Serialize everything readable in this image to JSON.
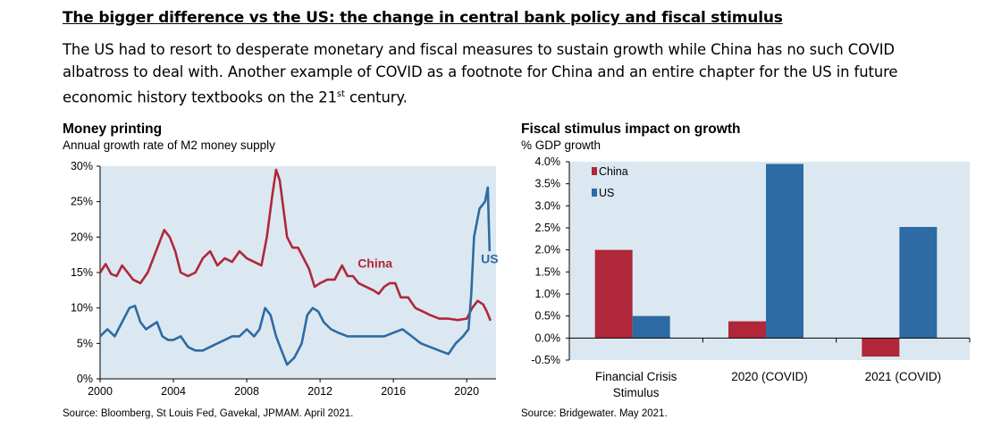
{
  "header": {
    "heading": "The bigger difference vs the US: the change in central bank policy and fiscal stimulus",
    "body_before_sup": "The US had to resort to desperate monetary and fiscal measures to sustain growth while China has no such COVID albatross to deal with.   Another example of COVID as a footnote for China and an entire chapter for the US in future economic history textbooks on the 21",
    "body_sup": "st",
    "body_after_sup": " century."
  },
  "colors": {
    "china": "#b0273a",
    "us": "#2e6aa3",
    "plot_bg": "#dbe8f1"
  },
  "chart_data": [
    {
      "type": "line",
      "title": "Money printing",
      "subtitle": "Annual growth rate of M2 money supply",
      "source": "Source: Bloomberg, St Louis Fed, Gavekal, JPMAM. April 2021.",
      "xlim": [
        2000,
        2021.6
      ],
      "ylim": [
        0,
        30
      ],
      "x_ticks": [
        2000,
        2004,
        2008,
        2012,
        2016,
        2020
      ],
      "x_tick_labels": [
        "2000",
        "2004",
        "2008",
        "2012",
        "2016",
        "2020"
      ],
      "y_ticks": [
        0,
        5,
        10,
        15,
        20,
        25,
        30
      ],
      "y_tick_labels": [
        "0%",
        "5%",
        "10%",
        "15%",
        "20%",
        "25%",
        "30%"
      ],
      "series": [
        {
          "name": "China",
          "color": "#b0273a",
          "x": [
            2000,
            2000.3,
            2000.6,
            2000.9,
            2001.2,
            2001.5,
            2001.8,
            2002.2,
            2002.6,
            2002.9,
            2003.2,
            2003.5,
            2003.8,
            2004.1,
            2004.4,
            2004.8,
            2005.2,
            2005.6,
            2006.0,
            2006.4,
            2006.8,
            2007.2,
            2007.6,
            2008.0,
            2008.4,
            2008.8,
            2009.1,
            2009.4,
            2009.6,
            2009.8,
            2010.0,
            2010.2,
            2010.5,
            2010.8,
            2011.1,
            2011.4,
            2011.7,
            2012.0,
            2012.4,
            2012.8,
            2013.2,
            2013.5,
            2013.8,
            2014.1,
            2014.5,
            2014.9,
            2015.2,
            2015.5,
            2015.8,
            2016.1,
            2016.4,
            2016.8,
            2017.2,
            2017.6,
            2018.0,
            2018.5,
            2019.0,
            2019.5,
            2020.0,
            2020.3,
            2020.6,
            2020.9,
            2021.1,
            2021.3
          ],
          "y": [
            15,
            16.2,
            14.8,
            14.5,
            16,
            15,
            14,
            13.5,
            15,
            17,
            19,
            21,
            20,
            18,
            15,
            14.5,
            15,
            17,
            18,
            16,
            17,
            16.5,
            18,
            17,
            16.5,
            16,
            20,
            26,
            29.5,
            28,
            24,
            20,
            18.5,
            18.5,
            17,
            15.5,
            13,
            13.5,
            14,
            14,
            16,
            14.5,
            14.5,
            13.5,
            13,
            12.5,
            12,
            13,
            13.5,
            13.5,
            11.5,
            11.5,
            10,
            9.5,
            9,
            8.5,
            8.5,
            8.3,
            8.5,
            10,
            11,
            10.5,
            9.5,
            8.2
          ]
        },
        {
          "name": "US",
          "color": "#2e6aa3",
          "x": [
            2000,
            2000.4,
            2000.8,
            2001.2,
            2001.6,
            2001.9,
            2002.2,
            2002.5,
            2002.8,
            2003.1,
            2003.4,
            2003.7,
            2004.0,
            2004.4,
            2004.8,
            2005.2,
            2005.6,
            2006.0,
            2006.4,
            2006.8,
            2007.2,
            2007.6,
            2008.0,
            2008.4,
            2008.7,
            2009.0,
            2009.3,
            2009.6,
            2009.9,
            2010.2,
            2010.6,
            2011.0,
            2011.3,
            2011.6,
            2011.9,
            2012.2,
            2012.6,
            2013.0,
            2013.5,
            2014.0,
            2014.5,
            2015.0,
            2015.5,
            2016.0,
            2016.5,
            2017.0,
            2017.5,
            2018.0,
            2018.5,
            2019.0,
            2019.4,
            2019.8,
            2020.1,
            2020.25,
            2020.4,
            2020.7,
            2021.0,
            2021.15,
            2021.25
          ],
          "y": [
            6,
            7,
            6,
            8,
            10,
            10.3,
            8,
            7,
            7.5,
            8,
            6,
            5.5,
            5.5,
            6,
            4.5,
            4,
            4,
            4.5,
            5,
            5.5,
            6,
            6,
            7,
            6,
            7,
            10,
            9,
            6,
            4,
            2,
            3,
            5,
            9,
            10,
            9.5,
            8,
            7,
            6.5,
            6,
            6,
            6,
            6,
            6,
            6.5,
            7,
            6,
            5,
            4.5,
            4,
            3.5,
            5,
            6,
            7,
            12,
            20,
            24,
            25,
            27,
            18
          ]
        }
      ],
      "annotations": [
        "China",
        "US"
      ]
    },
    {
      "type": "bar",
      "title": "Fiscal stimulus impact on growth",
      "subtitle": "% GDP growth",
      "source": "Source: Bridgewater. May 2021.",
      "categories": [
        [
          "Financial Crisis",
          "Stimulus"
        ],
        [
          "2020 (COVID)"
        ],
        [
          "2021 (COVID)"
        ]
      ],
      "ylim": [
        -0.5,
        4.0
      ],
      "y_ticks": [
        -0.5,
        0,
        0.5,
        1.0,
        1.5,
        2.0,
        2.5,
        3.0,
        3.5,
        4.0
      ],
      "y_tick_labels": [
        "-0.5%",
        "0.0%",
        "0.5%",
        "1.0%",
        "1.5%",
        "2.0%",
        "2.5%",
        "3.0%",
        "3.5%",
        "4.0%"
      ],
      "series": [
        {
          "name": "China",
          "color": "#b0273a",
          "values": [
            2.0,
            0.38,
            -0.42
          ]
        },
        {
          "name": "US",
          "color": "#2e6aa3",
          "values": [
            0.5,
            3.95,
            2.52
          ]
        }
      ],
      "legend": "top-left"
    }
  ]
}
